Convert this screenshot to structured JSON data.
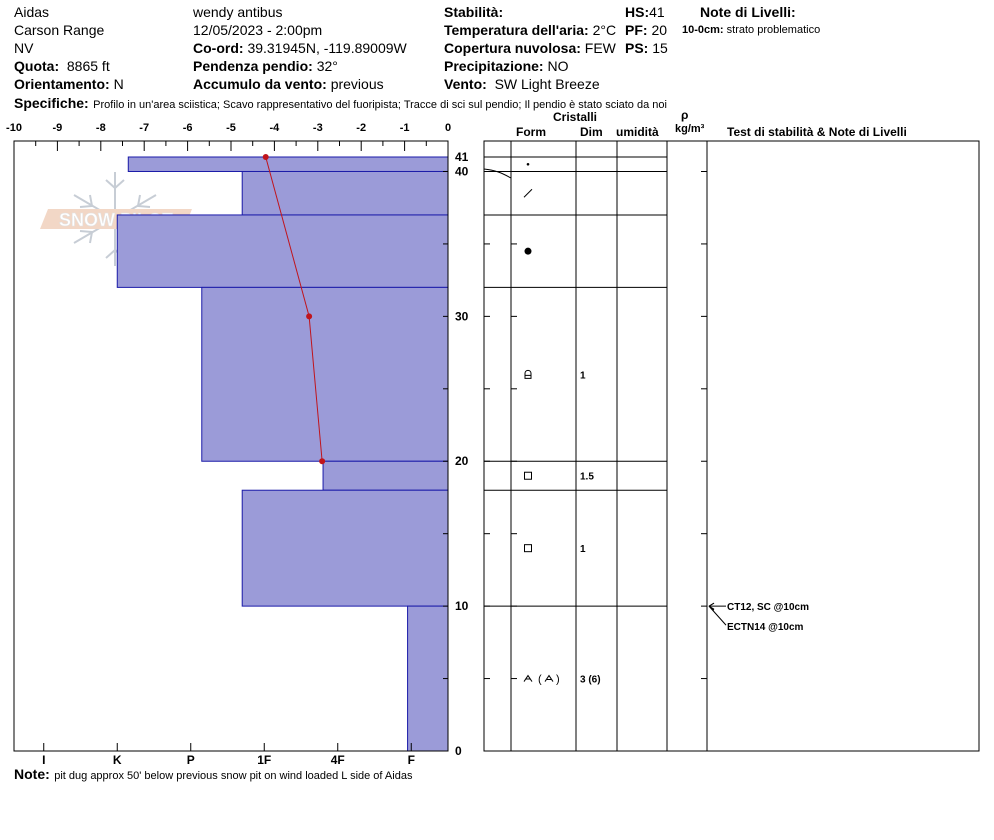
{
  "header": {
    "location": "Aidas",
    "range": "Carson Range",
    "state": "NV",
    "elevation_label": "Quota:",
    "elevation_value": "8865 ft",
    "aspect_label": "Orientamento:",
    "aspect_value": "N",
    "observer": "wendy antibus",
    "datetime": "12/05/2023 - 2:00pm",
    "coord_label": "Co-ord:",
    "coord_value": "39.31945N, -119.89009W",
    "slope_label": "Pendenza pendio:",
    "slope_value": "32°",
    "wind_loading_label": "Accumulo da vento:",
    "wind_loading_value": "previous",
    "stability_label": "Stabilità:",
    "air_temp_label": "Temperatura dell'aria:",
    "air_temp_value": "2°C",
    "sky_label": "Copertura nuvolosa:",
    "sky_value": "FEW",
    "precip_label": "Precipitazione:",
    "precip_value": "NO",
    "wind_label": "Vento:",
    "wind_value": "SW Light Breeze",
    "hs_label": "HS:",
    "hs_value": "41",
    "pf_label": "PF:",
    "pf_value": "20",
    "ps_label": "PS:",
    "ps_value": "15",
    "layer_notes_label": "Note di Livelli:",
    "layer_note_depth": "10-0cm:",
    "layer_note_text": "strato problematico",
    "specifics_label": "Specifiche:",
    "specifics_text": "Profilo in un'area sciistica; Scavo rappresentativo del fuoripista; Tracce di sci sul pendio; Il pendio è stato sciato da noi"
  },
  "footer": {
    "note_label": "Note:",
    "note_text": "pit dug approx 50' below previous snow pit on wind loaded L side of Aidas"
  },
  "logo": {
    "text": "SNOW PILOT"
  },
  "columns": {
    "crystals": "Cristalli",
    "form": "Form",
    "size": "Dim",
    "moisture": "umidità",
    "rho": "ρ",
    "density_unit": "kg/m³",
    "tests": "Test di stabilità & Note di Livelli"
  },
  "chart_data": {
    "type": "bar",
    "title": "",
    "temp_axis": {
      "ticks": [
        "-10",
        "-9",
        "-8",
        "-7",
        "-6",
        "-5",
        "-4",
        "-3",
        "-2",
        "-1",
        "0"
      ],
      "range": [
        -10,
        0
      ]
    },
    "hardness_axis": {
      "ticks": [
        "I",
        "K",
        "P",
        "1F",
        "4F",
        "F"
      ]
    },
    "depth_axis": {
      "range": [
        0,
        42
      ],
      "labels": [
        "41",
        "40",
        "30",
        "20",
        "10",
        "0"
      ]
    },
    "hardness_layers": [
      {
        "top": 41,
        "bottom": 40,
        "hardness_scale": 4.35
      },
      {
        "top": 40,
        "bottom": 37,
        "hardness_scale": 2.8
      },
      {
        "top": 37,
        "bottom": 32,
        "hardness_scale": 4.5
      },
      {
        "top": 32,
        "bottom": 20,
        "hardness_scale": 3.35
      },
      {
        "top": 20,
        "bottom": 18,
        "hardness_scale": 1.7
      },
      {
        "top": 18,
        "bottom": 10,
        "hardness_scale": 2.8
      },
      {
        "top": 10,
        "bottom": 0,
        "hardness_scale": 0.55
      }
    ],
    "temperature_profile": [
      {
        "depth": 41,
        "temp": -4.2
      },
      {
        "depth": 30,
        "temp": -3.2
      },
      {
        "depth": 20,
        "temp": -2.9
      }
    ],
    "layer_boundaries": [
      41,
      40,
      37,
      32,
      20,
      18,
      10,
      0
    ],
    "layer_rows": [
      {
        "mid": 40.5,
        "form": "dot",
        "size": ""
      },
      {
        "mid": 38.5,
        "form": "slash",
        "size": ""
      },
      {
        "mid": 34.5,
        "form": "circle",
        "size": ""
      },
      {
        "mid": 26,
        "form": "faceted-round",
        "size": "1"
      },
      {
        "mid": 19,
        "form": "square",
        "size": "1.5"
      },
      {
        "mid": 14,
        "form": "square",
        "size": "1"
      },
      {
        "mid": 5,
        "form": "depth-hoar",
        "size": "3 (6)"
      }
    ],
    "tests": [
      {
        "depth": 10,
        "text": "CT12, SC @10cm"
      },
      {
        "depth": 10,
        "text": "ECTN14 @10cm"
      }
    ]
  }
}
